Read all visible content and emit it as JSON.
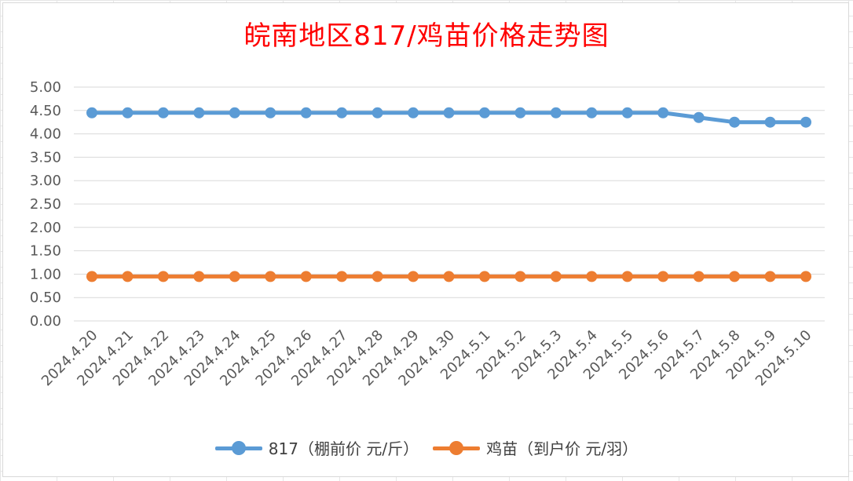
{
  "chart_data": {
    "type": "line",
    "title": "皖南地区817/鸡苗价格走势图",
    "categories": [
      "2024.4.20",
      "2024.4.21",
      "2024.4.22",
      "2024.4.23",
      "2024.4.24",
      "2024.4.25",
      "2024.4.26",
      "2024.4.27",
      "2024.4.28",
      "2024.4.29",
      "2024.4.30",
      "2024.5.1",
      "2024.5.2",
      "2024.5.3",
      "2024.5.4",
      "2024.5.5",
      "2024.5.6",
      "2024.5.7",
      "2024.5.8",
      "2024.5.9",
      "2024.5.10"
    ],
    "series": [
      {
        "name": "817（棚前价 元/斤）",
        "color": "#5b9bd5",
        "values": [
          4.45,
          4.45,
          4.45,
          4.45,
          4.45,
          4.45,
          4.45,
          4.45,
          4.45,
          4.45,
          4.45,
          4.45,
          4.45,
          4.45,
          4.45,
          4.45,
          4.45,
          4.35,
          4.25,
          4.25,
          4.25
        ]
      },
      {
        "name": "鸡苗（到户价 元/羽）",
        "color": "#ed7d31",
        "values": [
          0.95,
          0.95,
          0.95,
          0.95,
          0.95,
          0.95,
          0.95,
          0.95,
          0.95,
          0.95,
          0.95,
          0.95,
          0.95,
          0.95,
          0.95,
          0.95,
          0.95,
          0.95,
          0.95,
          0.95,
          0.95
        ]
      }
    ],
    "yticks": [
      "0.00",
      "0.50",
      "1.00",
      "1.50",
      "2.00",
      "2.50",
      "3.00",
      "3.50",
      "4.00",
      "4.50",
      "5.00"
    ],
    "ylim": [
      0,
      5
    ],
    "grid": true,
    "legend_position": "bottom",
    "title_color": "#ff0000"
  }
}
